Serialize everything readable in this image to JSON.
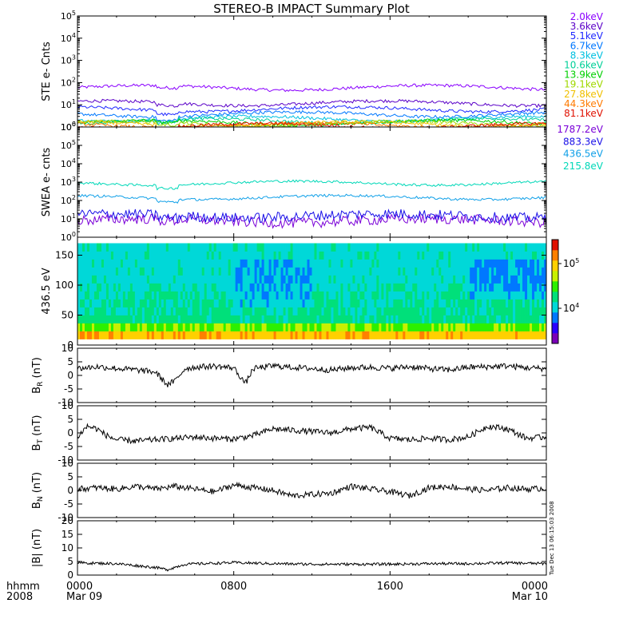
{
  "title": "STEREO-B IMPACT Summary Plot",
  "time_axis": {
    "ticks": [
      {
        "hhmm": "0000",
        "date": "Mar 09",
        "t": 0
      },
      {
        "hhmm": "0800",
        "date": "",
        "t": 8
      },
      {
        "hhmm": "1600",
        "date": "",
        "t": 16
      },
      {
        "hhmm": "0000",
        "date": "Mar 10",
        "t": 24
      }
    ],
    "left_label_top": "hhmm",
    "left_label_bottom": "2008"
  },
  "timestamp": "Tue Dec 13 06:15:03 2008",
  "colorbar": {
    "tick_labels": [
      "10^5",
      "10^4"
    ],
    "colors": [
      "#7a00b8",
      "#2a00ff",
      "#0078ff",
      "#00d8d8",
      "#00e07a",
      "#2cf000",
      "#c8f000",
      "#ffd000",
      "#ff8000",
      "#e01000"
    ]
  },
  "chart_data": [
    {
      "panel": "ste",
      "type": "line",
      "ylabel": "STE e- Cnts",
      "yscale": "log",
      "ylim": [
        1,
        100000
      ],
      "yticks": [
        "10^0",
        "10^1",
        "10^2",
        "10^3",
        "10^4",
        "10^5"
      ],
      "series": [
        {
          "name": "2.0keV",
          "color": "#8a00ff",
          "level": 60
        },
        {
          "name": "3.6keV",
          "color": "#5a00c8",
          "level": 12
        },
        {
          "name": "5.1keV",
          "color": "#1e28ff",
          "level": 6.5
        },
        {
          "name": "6.7keV",
          "color": "#0078ff",
          "level": 3.8
        },
        {
          "name": "8.3keV",
          "color": "#00c0e0",
          "level": 2.4
        },
        {
          "name": "10.6keV",
          "color": "#00d098",
          "level": 1.9
        },
        {
          "name": "13.9keV",
          "color": "#00d000",
          "level": 1.6
        },
        {
          "name": "19.1keV",
          "color": "#a0d800",
          "level": 1.45
        },
        {
          "name": "27.8keV",
          "color": "#f0c000",
          "level": 1.35
        },
        {
          "name": "44.3keV",
          "color": "#ff7a00",
          "level": 1.25
        },
        {
          "name": "81.1keV",
          "color": "#e01000",
          "level": 1.15
        }
      ]
    },
    {
      "panel": "swea",
      "type": "line",
      "ylabel": "SWEA e- cnts",
      "yscale": "log",
      "ylim": [
        1,
        1000000
      ],
      "yticks": [
        "10^0",
        "10^1",
        "10^2",
        "10^3",
        "10^4",
        "10^5",
        "10^6"
      ],
      "series": [
        {
          "name": "1787.2eV",
          "color": "#7a00d8",
          "level": 8
        },
        {
          "name": "883.3eV",
          "color": "#1a10e8",
          "level": 15
        },
        {
          "name": "436.5eV",
          "color": "#10a0e8",
          "level": 150
        },
        {
          "name": "215.8eV",
          "color": "#00d8b8",
          "level": 900
        }
      ]
    },
    {
      "panel": "pad",
      "type": "heatmap",
      "ylabel": "436.5 eV",
      "ylim": [
        0,
        180
      ],
      "yticks": [
        0,
        50,
        100,
        150
      ]
    },
    {
      "panel": "br",
      "type": "line",
      "ylabel": "B_R (nT)",
      "ylim": [
        -10,
        10
      ],
      "yticks": [
        -10,
        -5,
        0,
        5,
        10
      ],
      "mean": 2.2,
      "points": [
        [
          0,
          2.5
        ],
        [
          1,
          3.2
        ],
        [
          2,
          2.6
        ],
        [
          3,
          2.0
        ],
        [
          4,
          1.2
        ],
        [
          4.6,
          -3.5
        ],
        [
          5,
          -2.0
        ],
        [
          5.5,
          2.5
        ],
        [
          6,
          3.0
        ],
        [
          7,
          3.4
        ],
        [
          8,
          2.8
        ],
        [
          8.6,
          -3.0
        ],
        [
          9,
          2.5
        ],
        [
          10,
          3.5
        ],
        [
          11,
          3.0
        ],
        [
          12,
          2.5
        ],
        [
          13,
          2.0
        ],
        [
          14,
          2.8
        ],
        [
          15,
          3.0
        ],
        [
          16,
          2.6
        ],
        [
          17,
          3.2
        ],
        [
          18,
          2.5
        ],
        [
          19,
          2.0
        ],
        [
          20,
          3.0
        ],
        [
          21,
          3.2
        ],
        [
          22,
          3.5
        ],
        [
          23,
          2.8
        ],
        [
          24,
          2.5
        ]
      ]
    },
    {
      "panel": "bt",
      "type": "line",
      "ylabel": "B_T (nT)",
      "ylim": [
        -10,
        10
      ],
      "yticks": [
        -10,
        -5,
        0,
        5,
        10
      ],
      "mean": -1.5,
      "points": [
        [
          0,
          -1.5
        ],
        [
          0.5,
          2.5
        ],
        [
          1,
          1.5
        ],
        [
          1.5,
          -1
        ],
        [
          2,
          -2.5
        ],
        [
          3,
          -3
        ],
        [
          4,
          -2.5
        ],
        [
          5,
          -2
        ],
        [
          6,
          -1.5
        ],
        [
          7,
          -2.0
        ],
        [
          8,
          -2.2
        ],
        [
          9,
          -1.0
        ],
        [
          10,
          1.5
        ],
        [
          11,
          1.0
        ],
        [
          12,
          0.5
        ],
        [
          13,
          0.0
        ],
        [
          14,
          1.5
        ],
        [
          15,
          2.0
        ],
        [
          16,
          -2.0
        ],
        [
          17,
          -2.5
        ],
        [
          18,
          -2.0
        ],
        [
          19,
          -2.5
        ],
        [
          20,
          -1.5
        ],
        [
          21,
          2.5
        ],
        [
          22,
          1.5
        ],
        [
          23,
          -2.0
        ],
        [
          24,
          -1.5
        ]
      ]
    },
    {
      "panel": "bn",
      "type": "line",
      "ylabel": "B_N (nT)",
      "ylim": [
        -10,
        10
      ],
      "yticks": [
        -10,
        -5,
        0,
        5,
        10
      ],
      "mean": 0.5,
      "points": [
        [
          0,
          0.5
        ],
        [
          1,
          1.0
        ],
        [
          2,
          0.5
        ],
        [
          3,
          1.5
        ],
        [
          4,
          0.5
        ],
        [
          5,
          1.5
        ],
        [
          6,
          0.5
        ],
        [
          7,
          -0.5
        ],
        [
          8,
          2.0
        ],
        [
          9,
          1.0
        ],
        [
          10,
          0.0
        ],
        [
          11,
          -2.0
        ],
        [
          12,
          -1.5
        ],
        [
          13,
          -1.0
        ],
        [
          14,
          1.5
        ],
        [
          15,
          0.5
        ],
        [
          16,
          -0.5
        ],
        [
          17,
          -2.0
        ],
        [
          18,
          1.0
        ],
        [
          19,
          1.5
        ],
        [
          20,
          0.5
        ],
        [
          21,
          0.0
        ],
        [
          22,
          1.0
        ],
        [
          23,
          0.5
        ],
        [
          24,
          0.8
        ]
      ]
    },
    {
      "panel": "bmag",
      "type": "line",
      "ylabel": "|B| (nT)",
      "ylim": [
        0,
        20
      ],
      "yticks": [
        0,
        5,
        10,
        15,
        20
      ],
      "mean": 4.0,
      "points": [
        [
          0,
          4.5
        ],
        [
          2,
          4.2
        ],
        [
          4,
          2.8
        ],
        [
          4.6,
          2.0
        ],
        [
          5.5,
          4.0
        ],
        [
          8,
          4.6
        ],
        [
          10,
          4.2
        ],
        [
          12,
          4.0
        ],
        [
          14,
          4.0
        ],
        [
          16,
          4.0
        ],
        [
          18,
          4.2
        ],
        [
          20,
          4.2
        ],
        [
          22,
          4.5
        ],
        [
          24,
          4.2
        ]
      ]
    }
  ]
}
